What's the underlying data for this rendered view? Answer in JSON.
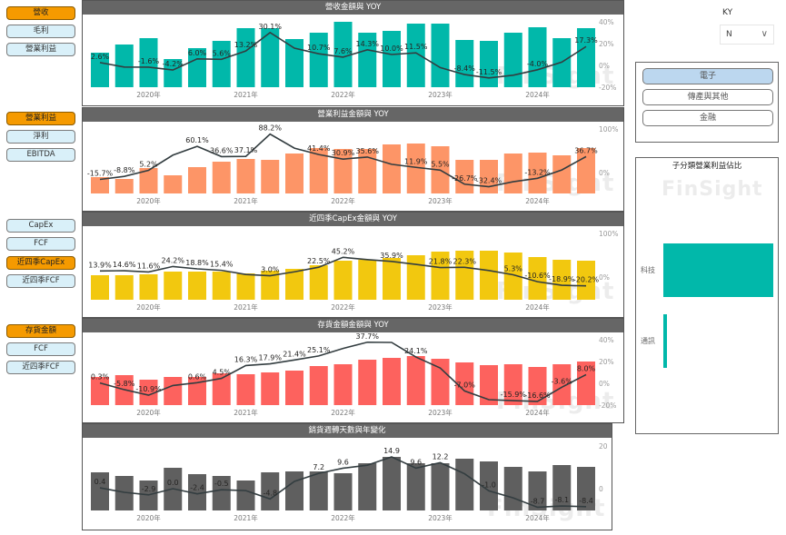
{
  "watermark": "FinSight",
  "button_groups": [
    [
      {
        "label": "營收",
        "active": true
      },
      {
        "label": "毛利",
        "active": false
      },
      {
        "label": "營業利益",
        "active": false
      }
    ],
    [
      {
        "label": "營業利益",
        "active": true
      },
      {
        "label": "淨利",
        "active": false
      },
      {
        "label": "EBITDA",
        "active": false
      }
    ],
    [
      {
        "label": "CapEx",
        "active": false
      },
      {
        "label": "FCF",
        "active": false
      },
      {
        "label": "近四季CapEx",
        "active": true
      },
      {
        "label": "近四季FCF",
        "active": false
      }
    ],
    [
      {
        "label": "存貨金額",
        "active": true
      },
      {
        "label": "FCF",
        "active": false
      },
      {
        "label": "近四季FCF",
        "active": false
      }
    ]
  ],
  "filters": {
    "ky_label": "KY",
    "ky_value": "N"
  },
  "industry": {
    "options": [
      {
        "label": "電子",
        "selected": true
      },
      {
        "label": "傳產與其他",
        "selected": false
      },
      {
        "label": "金融",
        "selected": false
      }
    ]
  },
  "subcategory": {
    "title": "子分類營業利益佔比",
    "items": [
      {
        "label": "科技",
        "share": 0.97
      },
      {
        "label": "通訊",
        "share": 0.03
      }
    ]
  },
  "colors": {
    "revenue": "#01b8aa",
    "op_income": "#fd9567",
    "capex": "#f2c80f",
    "inventory": "#fd625e",
    "turnover": "#5f5f5f",
    "line": "#333d40"
  },
  "chart_data": [
    {
      "type": "bar+line",
      "title": "營收金額與 YOY",
      "color": "#01b8aa",
      "x_tick_labels": [
        "2020年",
        "2021年",
        "2022年",
        "2023年",
        "2024年"
      ],
      "y_ticks": [
        {
          "v": 40,
          "label": "40%"
        },
        {
          "v": 20,
          "label": "20%"
        },
        {
          "v": 0,
          "label": "0%"
        },
        {
          "v": -20,
          "label": "-20%"
        }
      ],
      "ylim": [
        -20,
        40
      ],
      "bar_max": 72,
      "bars": [
        38,
        47,
        54,
        31,
        43,
        51,
        65,
        65,
        53,
        60,
        72,
        60,
        62,
        70,
        70,
        52,
        51,
        60,
        66,
        54,
        65
      ],
      "yoy": [
        2.6,
        -1.5,
        -1.6,
        -4.2,
        6.0,
        5.6,
        13.2,
        30.1,
        15.8,
        10.7,
        7.6,
        14.3,
        10.0,
        11.5,
        -2,
        -8.4,
        -11.5,
        -9,
        -4.0,
        3,
        17.3
      ],
      "labels": [
        "2.6%",
        null,
        "-1.6%",
        "-4.2%",
        "6.0%",
        "5.6%",
        "13.2%",
        "30.1%",
        null,
        "10.7%",
        "7.6%",
        "14.3%",
        "10.0%",
        "11.5%",
        null,
        "-8.4%",
        "-11.5%",
        null,
        "-4.0%",
        null,
        "17.3%"
      ]
    },
    {
      "type": "bar+line",
      "title": "營業利益金額與 YOY",
      "color": "#fd9567",
      "x_tick_labels": [
        "2020年",
        "2021年",
        "2022年",
        "2023年",
        "2024年"
      ],
      "y_ticks": [
        {
          "v": 100,
          "label": "100%"
        },
        {
          "v": 0,
          "label": "0%"
        }
      ],
      "ylim": [
        -48,
        100
      ],
      "bar_max": 71,
      "bars": [
        18,
        16,
        28,
        20,
        29,
        35,
        38,
        37,
        44,
        50,
        49,
        49,
        54,
        55,
        52,
        37,
        37,
        44,
        45,
        42,
        50
      ],
      "yoy": [
        -15.7,
        -8.8,
        5.2,
        40,
        60.1,
        36.6,
        37.1,
        88.2,
        56,
        41.4,
        30.9,
        35.6,
        19,
        11.9,
        5.5,
        -26.7,
        -32.4,
        -21,
        -13.2,
        6,
        36.7
      ],
      "labels": [
        "-15.7%",
        "-8.8%",
        "5.2%",
        null,
        "60.1%",
        "36.6%",
        "37.1%",
        "88.2%",
        null,
        "41.4%",
        "30.9%",
        "35.6%",
        null,
        "11.9%",
        "5.5%",
        "-26.7%",
        "-32.4%",
        null,
        "-13.2%",
        null,
        "36.7%"
      ]
    },
    {
      "type": "bar+line",
      "title": "近四季CapEx金額與 YOY",
      "color": "#f2c80f",
      "x_tick_labels": [
        "2020年",
        "2021年",
        "2022年",
        "2023年",
        "2024年"
      ],
      "y_ticks": [
        {
          "v": 100,
          "label": "100%"
        },
        {
          "v": 0,
          "label": "0%"
        }
      ],
      "ylim": [
        -52,
        100
      ],
      "bar_max": 73,
      "bars": [
        27,
        27,
        28,
        31,
        31,
        31,
        29,
        32,
        34,
        38,
        43,
        44,
        46,
        49,
        53,
        54,
        54,
        52,
        47,
        44,
        43
      ],
      "yoy": [
        13.9,
        14.6,
        11.6,
        24.2,
        18.8,
        15.4,
        6,
        3.0,
        12,
        22.5,
        45.2,
        40,
        35.9,
        29,
        21.8,
        22.3,
        15,
        5.3,
        -10.6,
        -18.9,
        -20.2
      ],
      "labels": [
        "13.9%",
        "14.6%",
        "11.6%",
        "24.2%",
        "18.8%",
        "15.4%",
        null,
        "3.0%",
        null,
        "22.5%",
        "45.2%",
        null,
        "35.9%",
        null,
        "21.8%",
        "22.3%",
        null,
        "5.3%",
        "-10.6%",
        "-18.9%",
        "-20.2%"
      ]
    },
    {
      "type": "bar+line",
      "title": "存貨金額金額與 YOY",
      "color": "#fd625e",
      "x_tick_labels": [
        "2020年",
        "2021年",
        "2022年",
        "2023年",
        "2024年"
      ],
      "y_ticks": [
        {
          "v": 40,
          "label": "40%"
        },
        {
          "v": 20,
          "label": "20%"
        },
        {
          "v": 0,
          "label": "0%"
        },
        {
          "v": -20,
          "label": "-20%"
        }
      ],
      "ylim": [
        -20,
        40
      ],
      "bar_max": 72,
      "bars": [
        31,
        33,
        28,
        31,
        31,
        35,
        34,
        36,
        38,
        43,
        45,
        50,
        52,
        54,
        51,
        47,
        44,
        45,
        42,
        45,
        48
      ],
      "yoy": [
        0.3,
        -5.8,
        -10.9,
        -2,
        0.6,
        4.5,
        16.3,
        17.9,
        21.4,
        25.1,
        32,
        37.7,
        37.5,
        24.1,
        14,
        -7.0,
        -15,
        -15.9,
        -16.6,
        -3.6,
        8.0
      ],
      "labels": [
        "0.3%",
        "-5.8%",
        "-10.9%",
        null,
        "0.6%",
        "4.5%",
        "16.3%",
        "17.9%",
        "21.4%",
        "25.1%",
        null,
        "37.7%",
        null,
        "24.1%",
        null,
        "-7.0%",
        null,
        "-15.9%",
        "-16.6%",
        "-3.6%",
        "8.0%"
      ]
    },
    {
      "type": "bar+line",
      "title": "銷貨週轉天數與年變化",
      "color": "#5f5f5f",
      "x_tick_labels": [
        "2020年",
        "2021年",
        "2022年",
        "2023年",
        "2024年"
      ],
      "y_ticks": [
        {
          "v": 20,
          "label": "20"
        },
        {
          "v": 0,
          "label": "0"
        }
      ],
      "ylim": [
        -10.2,
        20
      ],
      "bar_max": 71,
      "bars": [
        42,
        38,
        33,
        47,
        40,
        38,
        33,
        42,
        43,
        43,
        41,
        52,
        59,
        52,
        52,
        57,
        54,
        48,
        43,
        50,
        48
      ],
      "yoy": [
        0.4,
        -1.7,
        -2.9,
        0.0,
        -2.4,
        -0.5,
        -0.9,
        -4.8,
        3.4,
        7.2,
        9.6,
        11,
        14.9,
        9.6,
        12.2,
        7,
        -1.0,
        -4.3,
        -8.7,
        -8.1,
        -8.4
      ],
      "labels": [
        "0.4",
        null,
        "-2.9",
        "0.0",
        "-2.4",
        "-0.5",
        null,
        "-4.8",
        null,
        "7.2",
        "9.6",
        null,
        "14.9",
        "9.6",
        "12.2",
        null,
        "-1.0",
        null,
        "-8.7",
        "-8.1",
        "-8.4"
      ]
    }
  ]
}
